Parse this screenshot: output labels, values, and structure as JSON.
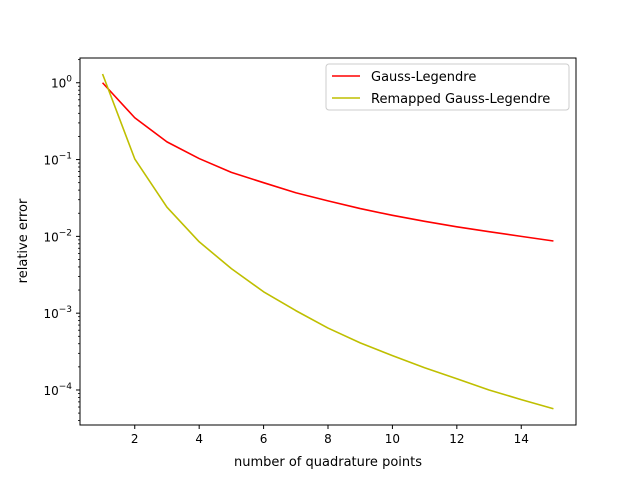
{
  "chart_data": {
    "type": "line",
    "title": "",
    "xlabel": "number of quadrature points",
    "ylabel": "relative error",
    "yscale": "log",
    "xlim": [
      0.3,
      15.7
    ],
    "ylim": [
      3.5e-05,
      2.1
    ],
    "grid": false,
    "legend_position": "top-right",
    "x_ticks": [
      2,
      4,
      6,
      8,
      10,
      12,
      14
    ],
    "y_ticks": [
      {
        "value": 1,
        "label": "10⁰",
        "base": "10",
        "exp": "0"
      },
      {
        "value": 0.1,
        "label": "10⁻¹",
        "base": "10",
        "exp": "−1"
      },
      {
        "value": 0.01,
        "label": "10⁻²",
        "base": "10",
        "exp": "−2"
      },
      {
        "value": 0.001,
        "label": "10⁻³",
        "base": "10",
        "exp": "−3"
      },
      {
        "value": 0.0001,
        "label": "10⁻⁴",
        "base": "10",
        "exp": "−4"
      }
    ],
    "x": [
      1,
      2,
      3,
      4,
      5,
      6,
      7,
      8,
      9,
      10,
      11,
      12,
      13,
      14,
      15
    ],
    "series": [
      {
        "name": "Gauss-Legendre",
        "color": "#ff0000",
        "values": [
          1.0,
          0.35,
          0.17,
          0.103,
          0.068,
          0.05,
          0.037,
          0.029,
          0.023,
          0.0188,
          0.0157,
          0.0133,
          0.0115,
          0.01,
          0.0087
        ]
      },
      {
        "name": "Remapped Gauss-Legendre",
        "color": "#bfbf00",
        "values": [
          1.3,
          0.102,
          0.024,
          0.0085,
          0.0038,
          0.0019,
          0.00108,
          0.00064,
          0.00041,
          0.00028,
          0.000195,
          0.00014,
          0.0001,
          7.5e-05,
          5.7e-05
        ]
      }
    ]
  }
}
